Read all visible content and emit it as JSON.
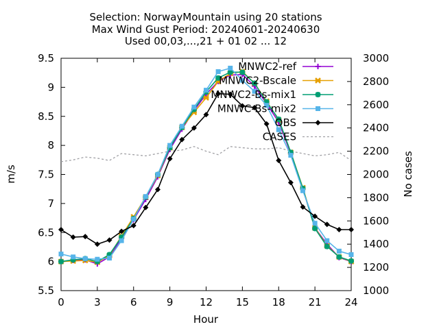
{
  "chart_data": {
    "type": "line",
    "title_lines": [
      "Selection: NorwayMountain using    20 stations",
      "Max Wind Gust   Period: 20240601-20240630",
      "Used 00,03,...,21 + 01 02 ... 12"
    ],
    "xlabel": "Hour",
    "ylabel": "m/s",
    "y2label": "No cases",
    "xlim": [
      0,
      24
    ],
    "ylim": [
      5.5,
      9.5
    ],
    "y2lim": [
      1000,
      3000
    ],
    "x_ticks": [
      "0",
      "3",
      "6",
      "9",
      "12",
      "15",
      "18",
      "21",
      "24"
    ],
    "y_ticks": [
      "5.5",
      "6",
      "6.5",
      "7",
      "7.5",
      "8",
      "8.5",
      "9",
      "9.5"
    ],
    "y2_ticks": [
      "1000",
      "1200",
      "1400",
      "1600",
      "1800",
      "2000",
      "2200",
      "2400",
      "2600",
      "2800",
      "3000"
    ],
    "grid": false,
    "legend_position": "top-right",
    "x": [
      0,
      1,
      2,
      3,
      4,
      5,
      6,
      7,
      8,
      9,
      10,
      11,
      12,
      13,
      14,
      15,
      16,
      17,
      18,
      19,
      20,
      21,
      22,
      23,
      24
    ],
    "series": [
      {
        "name": "MNWC2-ref",
        "axis": "y",
        "color": "#9400d3",
        "marker": "plus",
        "values": [
          6.0,
          6.02,
          6.03,
          5.96,
          6.08,
          6.4,
          6.72,
          7.07,
          7.46,
          7.93,
          8.28,
          8.6,
          8.88,
          9.1,
          9.21,
          9.22,
          9.02,
          8.72,
          8.4,
          7.86,
          7.25,
          6.58,
          6.3,
          6.07,
          6.0
        ]
      },
      {
        "name": "MNWC2-Bscale",
        "axis": "y",
        "color": "#e69f00",
        "marker": "cross",
        "values": [
          6.0,
          6.01,
          6.02,
          5.99,
          6.1,
          6.44,
          6.77,
          7.11,
          7.48,
          7.96,
          8.31,
          8.57,
          8.82,
          9.1,
          9.24,
          9.27,
          9.07,
          8.76,
          8.44,
          7.88,
          7.27,
          6.58,
          6.27,
          6.08,
          6.0
        ]
      },
      {
        "name": "MNWC2-Bs-mix1",
        "axis": "y",
        "color": "#009e73",
        "marker": "star",
        "values": [
          6.0,
          6.03,
          6.05,
          6.0,
          6.12,
          6.42,
          6.74,
          7.11,
          7.5,
          7.96,
          8.31,
          8.62,
          8.92,
          9.16,
          9.26,
          9.26,
          9.07,
          8.75,
          8.45,
          7.88,
          7.26,
          6.57,
          6.26,
          6.08,
          6.01
        ]
      },
      {
        "name": "MNWC-Bs-mix2",
        "axis": "y",
        "color": "#56b4e9",
        "marker": "box",
        "values": [
          6.13,
          6.08,
          6.05,
          6.04,
          6.06,
          6.36,
          6.73,
          7.12,
          7.5,
          8.0,
          8.33,
          8.66,
          8.95,
          9.27,
          9.33,
          9.12,
          8.93,
          8.69,
          8.27,
          7.83,
          7.22,
          6.66,
          6.36,
          6.18,
          6.12
        ]
      },
      {
        "name": "OBS",
        "axis": "y",
        "color": "#000000",
        "marker": "diamond",
        "values": [
          6.55,
          6.42,
          6.43,
          6.3,
          6.37,
          6.52,
          6.62,
          6.93,
          7.24,
          7.77,
          8.1,
          8.3,
          8.53,
          8.89,
          8.88,
          8.68,
          8.65,
          8.37,
          7.74,
          7.36,
          6.94,
          6.78,
          6.64,
          6.55,
          6.55
        ]
      },
      {
        "name": "CASES",
        "axis": "y2",
        "color": "#a0a0a4",
        "dashed": true,
        "values": [
          2110,
          2125,
          2150,
          2140,
          2120,
          2180,
          2170,
          2160,
          2180,
          2200,
          2210,
          2240,
          2200,
          2170,
          2240,
          2230,
          2220,
          2220,
          2230,
          2200,
          2180,
          2160,
          2170,
          2190,
          2120
        ]
      }
    ]
  }
}
